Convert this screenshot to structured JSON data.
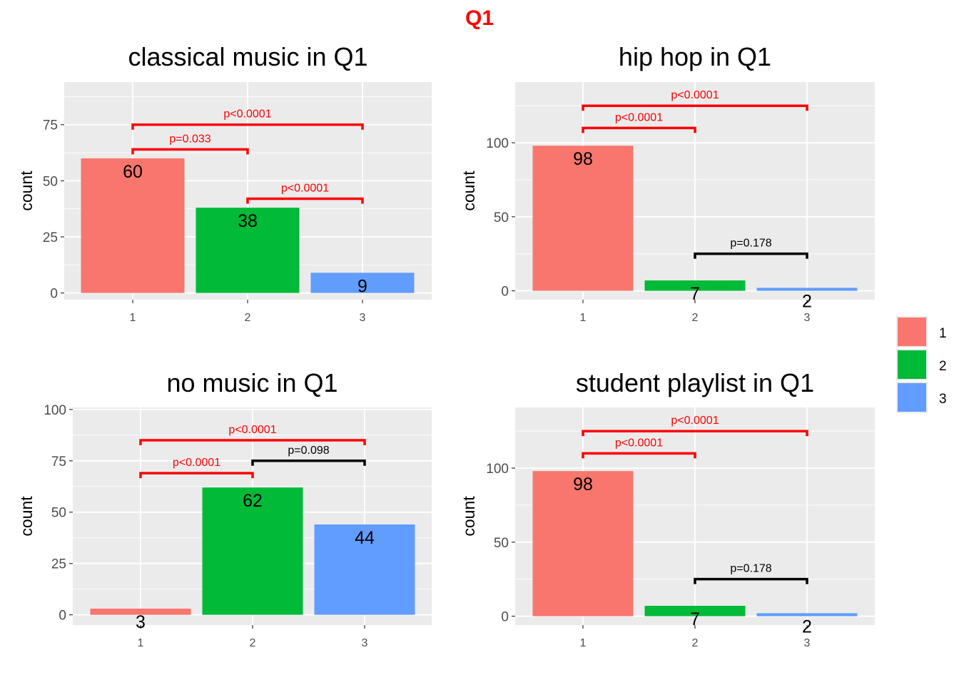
{
  "title": "Q1",
  "title_color": "#ff0000",
  "colors": {
    "1": "#f8766d",
    "2": "#00ba38",
    "3": "#619cff",
    "sig": "#ff0000",
    "ns": "#000000",
    "panel_bg": "#ebebeb",
    "grid": "#ffffff"
  },
  "legend": {
    "items": [
      {
        "label": "1",
        "color": "#f8766d"
      },
      {
        "label": "2",
        "color": "#00ba38"
      },
      {
        "label": "3",
        "color": "#619cff"
      }
    ]
  },
  "chart_data": [
    {
      "type": "bar",
      "title": "classical music in Q1",
      "xlabel": "",
      "ylabel": "count",
      "categories": [
        "1",
        "2",
        "3"
      ],
      "values": [
        60,
        38,
        9
      ],
      "ylim": [
        -3,
        94
      ],
      "yticks": [
        0,
        25,
        50,
        75
      ],
      "grid": true,
      "comparisons": [
        {
          "from": "1",
          "to": "2",
          "label": "p=0.033",
          "y": 64,
          "significant": true
        },
        {
          "from": "1",
          "to": "3",
          "label": "p<0.0001",
          "y": 75,
          "significant": true
        },
        {
          "from": "2",
          "to": "3",
          "label": "p<0.0001",
          "y": 42,
          "significant": true
        }
      ]
    },
    {
      "type": "bar",
      "title": "hip hop in Q1",
      "xlabel": "",
      "ylabel": "count",
      "categories": [
        "1",
        "2",
        "3"
      ],
      "values": [
        98,
        7,
        2
      ],
      "ylim": [
        -6,
        141
      ],
      "yticks": [
        0,
        50,
        100
      ],
      "grid": true,
      "comparisons": [
        {
          "from": "1",
          "to": "2",
          "label": "p<0.0001",
          "y": 110,
          "significant": true
        },
        {
          "from": "1",
          "to": "3",
          "label": "p<0.0001",
          "y": 125,
          "significant": true
        },
        {
          "from": "2",
          "to": "3",
          "label": "p=0.178",
          "y": 25,
          "significant": false
        }
      ]
    },
    {
      "type": "bar",
      "title": "no music in Q1",
      "xlabel": "",
      "ylabel": "count",
      "categories": [
        "1",
        "2",
        "3"
      ],
      "values": [
        3,
        62,
        44
      ],
      "ylim": [
        -5,
        101
      ],
      "yticks": [
        0,
        25,
        50,
        75,
        100
      ],
      "grid": true,
      "comparisons": [
        {
          "from": "1",
          "to": "2",
          "label": "p<0.0001",
          "y": 69,
          "significant": true
        },
        {
          "from": "1",
          "to": "3",
          "label": "p<0.0001",
          "y": 85,
          "significant": true
        },
        {
          "from": "2",
          "to": "3",
          "label": "p=0.098",
          "y": 75,
          "significant": false
        }
      ]
    },
    {
      "type": "bar",
      "title": "student playlist in Q1",
      "xlabel": "",
      "ylabel": "count",
      "categories": [
        "1",
        "2",
        "3"
      ],
      "values": [
        98,
        7,
        2
      ],
      "ylim": [
        -6,
        141
      ],
      "yticks": [
        0,
        50,
        100
      ],
      "grid": true,
      "comparisons": [
        {
          "from": "1",
          "to": "2",
          "label": "p<0.0001",
          "y": 110,
          "significant": true
        },
        {
          "from": "1",
          "to": "3",
          "label": "p<0.0001",
          "y": 125,
          "significant": true
        },
        {
          "from": "2",
          "to": "3",
          "label": "p=0.178",
          "y": 25,
          "significant": false
        }
      ]
    }
  ]
}
